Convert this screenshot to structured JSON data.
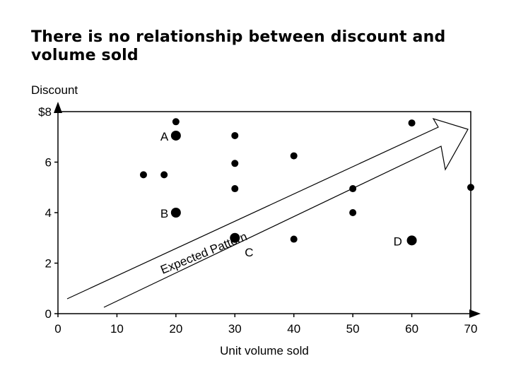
{
  "chart_data": {
    "type": "scatter",
    "title": "There is no relationship between discount and volume sold",
    "xlabel": "Unit volume sold",
    "ylabel": "Discount",
    "xlim": [
      0,
      70
    ],
    "ylim": [
      0,
      8
    ],
    "x_ticks": [
      {
        "value": 0,
        "label": "0"
      },
      {
        "value": 10,
        "label": "10"
      },
      {
        "value": 20,
        "label": "20"
      },
      {
        "value": 30,
        "label": "30"
      },
      {
        "value": 40,
        "label": "40"
      },
      {
        "value": 50,
        "label": "50"
      },
      {
        "value": 60,
        "label": "60"
      },
      {
        "value": 70,
        "label": "70"
      }
    ],
    "y_ticks": [
      {
        "value": 0,
        "label": "0"
      },
      {
        "value": 2,
        "label": "2"
      },
      {
        "value": 4,
        "label": "4"
      },
      {
        "value": 6,
        "label": "6"
      },
      {
        "value": 8,
        "label": "$8"
      }
    ],
    "grid": false,
    "points": [
      {
        "x": 20,
        "y": 7.6
      },
      {
        "x": 20,
        "y": 7.05,
        "label": "A",
        "highlight": true
      },
      {
        "x": 30,
        "y": 7.05
      },
      {
        "x": 14.5,
        "y": 5.5
      },
      {
        "x": 18,
        "y": 5.5
      },
      {
        "x": 30,
        "y": 5.95
      },
      {
        "x": 40,
        "y": 6.25
      },
      {
        "x": 30,
        "y": 4.95
      },
      {
        "x": 50,
        "y": 4.95
      },
      {
        "x": 70,
        "y": 5.0
      },
      {
        "x": 20,
        "y": 4.0,
        "label": "B",
        "highlight": true
      },
      {
        "x": 50,
        "y": 4.0
      },
      {
        "x": 30,
        "y": 3.0,
        "label": "C",
        "highlight": true
      },
      {
        "x": 40,
        "y": 2.95
      },
      {
        "x": 60,
        "y": 2.9,
        "label": "D",
        "highlight": true
      },
      {
        "x": 60,
        "y": 7.55
      }
    ],
    "annotations": [
      {
        "text": "Expected Pattern",
        "kind": "arrow"
      }
    ]
  }
}
